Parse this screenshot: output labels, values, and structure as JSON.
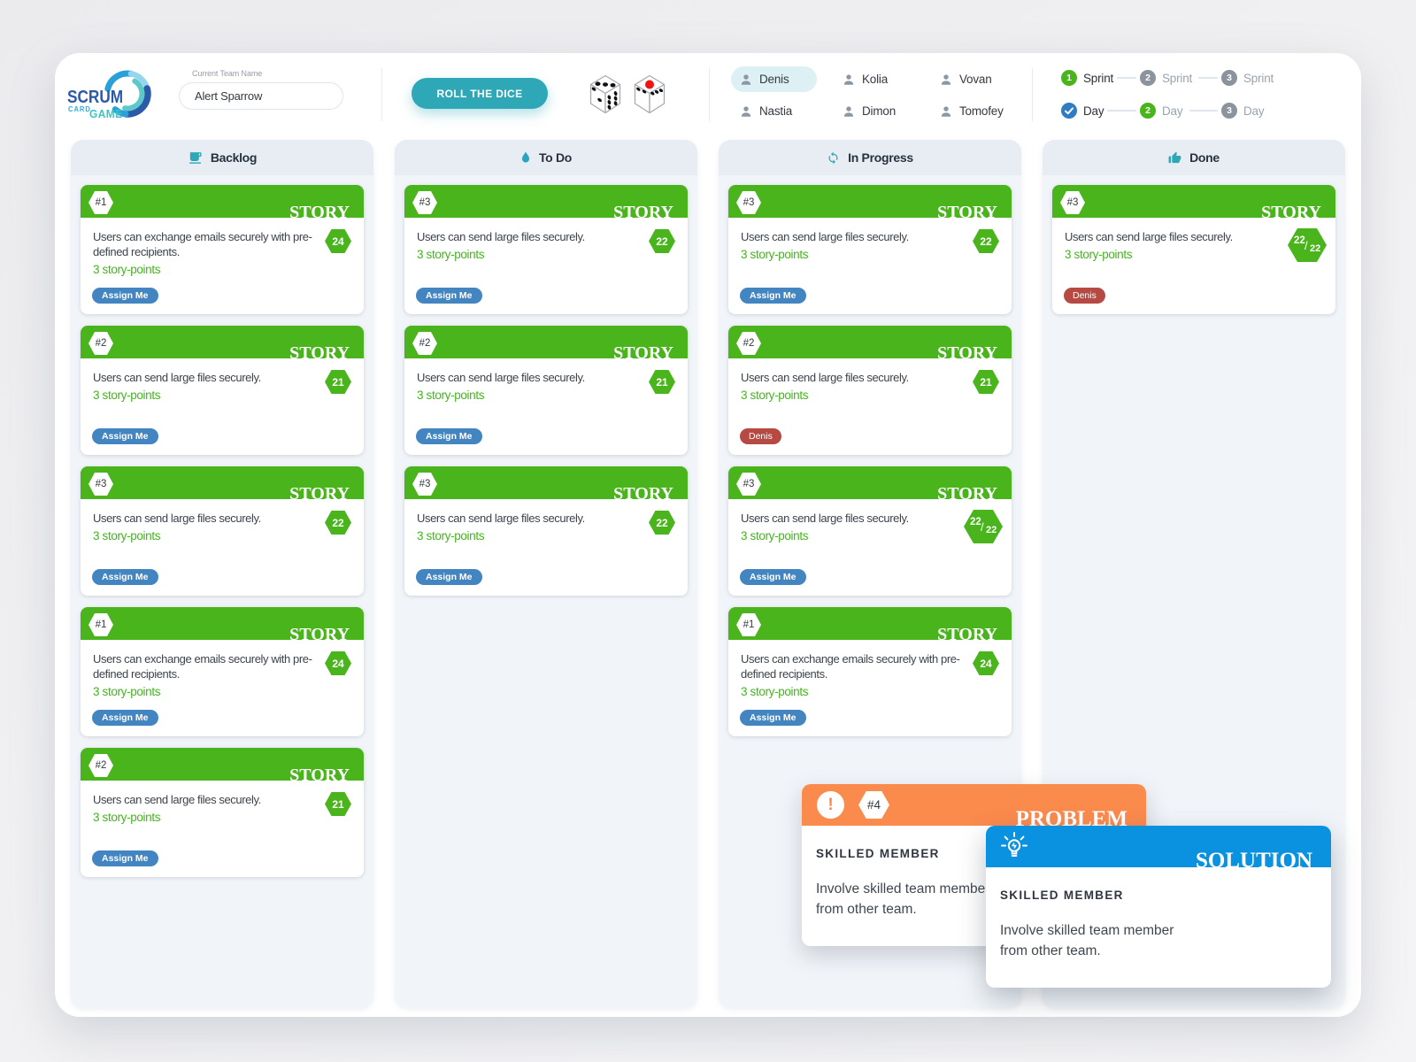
{
  "header": {
    "logo": {
      "line1": "SCRUM",
      "line2": "CARD",
      "line3": "GAME"
    },
    "team_name": {
      "label": "Current Team Name",
      "value": "Alert Sparrow"
    },
    "roll_button_label": "ROLL THE DICE",
    "dice": [
      {
        "name": "die-1",
        "top_face": 3
      },
      {
        "name": "die-2",
        "top_face": 1
      }
    ],
    "members": [
      {
        "name": "Denis",
        "active": true
      },
      {
        "name": "Kolia",
        "active": false
      },
      {
        "name": "Vovan",
        "active": false
      },
      {
        "name": "Nastia",
        "active": false
      },
      {
        "name": "Dimon",
        "active": false
      },
      {
        "name": "Tomofey",
        "active": false
      }
    ],
    "sprint_steps": [
      {
        "num": "1",
        "label": "Sprint",
        "state": "green",
        "current": true
      },
      {
        "num": "2",
        "label": "Sprint",
        "state": "gray",
        "current": false
      },
      {
        "num": "3",
        "label": "Sprint",
        "state": "gray",
        "current": false
      }
    ],
    "day_steps": [
      {
        "num": "",
        "label": "Day",
        "state": "blue-check",
        "current": true
      },
      {
        "num": "2",
        "label": "Day",
        "state": "green",
        "current": false
      },
      {
        "num": "3",
        "label": "Day",
        "state": "gray",
        "current": false
      }
    ]
  },
  "columns": [
    {
      "title": "Backlog",
      "icon": "coffee-cup-icon",
      "cards": [
        {
          "id": "#1",
          "type": "STORY",
          "text": "Users can exchange emails securely with pre-defined recipients.",
          "points": "3 story-points",
          "badge": "24",
          "action": {
            "kind": "assign",
            "label": "Assign Me"
          }
        },
        {
          "id": "#2",
          "type": "STORY",
          "text": "Users can send large files securely.",
          "points": "3 story-points",
          "badge": "21",
          "action": {
            "kind": "assign",
            "label": "Assign Me"
          }
        },
        {
          "id": "#3",
          "type": "STORY",
          "text": "Users can send large files securely.",
          "points": "3 story-points",
          "badge": "22",
          "action": {
            "kind": "assign",
            "label": "Assign Me"
          }
        },
        {
          "id": "#1",
          "type": "STORY",
          "text": "Users can exchange emails securely with pre-defined recipients.",
          "points": "3 story-points",
          "badge": "24",
          "action": {
            "kind": "assign",
            "label": "Assign Me"
          }
        },
        {
          "id": "#2",
          "type": "STORY",
          "text": "Users can send large files securely.",
          "points": "3 story-points",
          "badge": "21",
          "action": {
            "kind": "assign",
            "label": "Assign Me"
          }
        }
      ]
    },
    {
      "title": "To Do",
      "icon": "droplet-icon",
      "cards": [
        {
          "id": "#3",
          "type": "STORY",
          "text": "Users can send large files securely.",
          "points": "3 story-points",
          "badge": "22",
          "action": {
            "kind": "assign",
            "label": "Assign Me"
          }
        },
        {
          "id": "#2",
          "type": "STORY",
          "text": "Users can send large files securely.",
          "points": "3 story-points",
          "badge": "21",
          "action": {
            "kind": "assign",
            "label": "Assign Me"
          }
        },
        {
          "id": "#3",
          "type": "STORY",
          "text": "Users can send large files securely.",
          "points": "3 story-points",
          "badge": "22",
          "action": {
            "kind": "assign",
            "label": "Assign Me"
          }
        }
      ]
    },
    {
      "title": "In Progress",
      "icon": "refresh-icon",
      "cards": [
        {
          "id": "#3",
          "type": "STORY",
          "text": "Users can send large files securely.",
          "points": "3 story-points",
          "badge": "22",
          "action": {
            "kind": "assign",
            "label": "Assign Me"
          }
        },
        {
          "id": "#2",
          "type": "STORY",
          "text": "Users can send large files securely.",
          "points": "3 story-points",
          "badge": "21",
          "action": {
            "kind": "member",
            "label": "Denis"
          }
        },
        {
          "id": "#3",
          "type": "STORY",
          "text": "Users can send large files securely.",
          "points": "3 story-points",
          "badge": "22/22",
          "action": {
            "kind": "assign",
            "label": "Assign Me"
          }
        },
        {
          "id": "#1",
          "type": "STORY",
          "text": "Users can exchange emails securely with pre-defined recipients.",
          "points": "3 story-points",
          "badge": "24",
          "action": {
            "kind": "assign",
            "label": "Assign Me"
          }
        }
      ]
    },
    {
      "title": "Done",
      "icon": "thumbs-up-icon",
      "cards": [
        {
          "id": "#3",
          "type": "STORY",
          "text": "Users can send large files securely.",
          "points": "3 story-points",
          "badge": "22/22",
          "action": {
            "kind": "member",
            "label": "Denis"
          }
        }
      ]
    }
  ],
  "problem_card": {
    "id": "#4",
    "type": "PROBLEM",
    "title": "SKILLED MEMBER",
    "text": "Involve skilled team member from other team."
  },
  "solution_card": {
    "type": "SOLUTION",
    "title": "SKILLED MEMBER",
    "text": "Involve skilled team member from other team."
  },
  "colors": {
    "story_green": "#4ab41c",
    "problem_orange": "#fb8a4d",
    "solution_blue": "#0a92e1",
    "teal_accent": "#2ea7b6",
    "assign_blue": "#4285c0",
    "member_red": "#b3433c",
    "active_day_blue": "#2e7cc2",
    "inactive_gray": "#8b939d"
  }
}
